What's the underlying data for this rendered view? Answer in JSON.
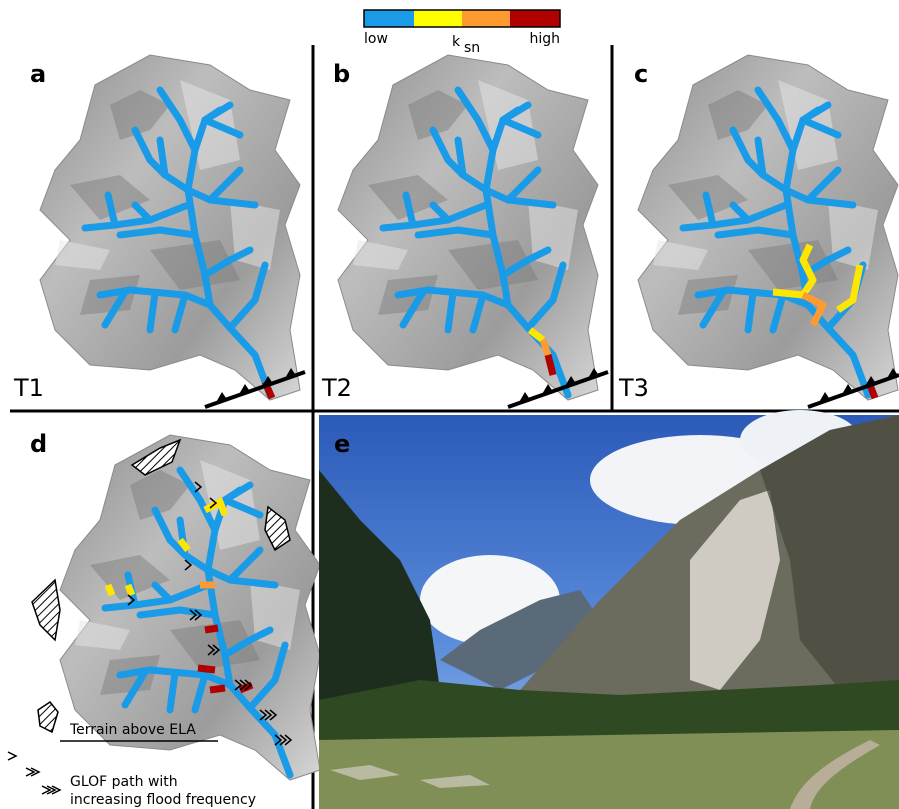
{
  "legend": {
    "title": "k",
    "title_sub": "sn",
    "low": "low",
    "high": "high",
    "colors": [
      "#1a9be8",
      "#ffff00",
      "#ff9a30",
      "#b00000"
    ]
  },
  "panels": [
    {
      "letter": "a",
      "time": "T1"
    },
    {
      "letter": "b",
      "time": "T2"
    },
    {
      "letter": "c",
      "time": "T3"
    },
    {
      "letter": "d",
      "time": ""
    },
    {
      "letter": "e",
      "time": ""
    }
  ],
  "key": {
    "terrain": "Terrain above ELA",
    "glof_line1": "GLOF path with",
    "glof_line2": "increasing flood frequency"
  },
  "colors": {
    "river": "#1a9be8",
    "yellow": "#ffe600",
    "orange": "#ff9a30",
    "red": "#b00000",
    "divider": "#000000"
  }
}
